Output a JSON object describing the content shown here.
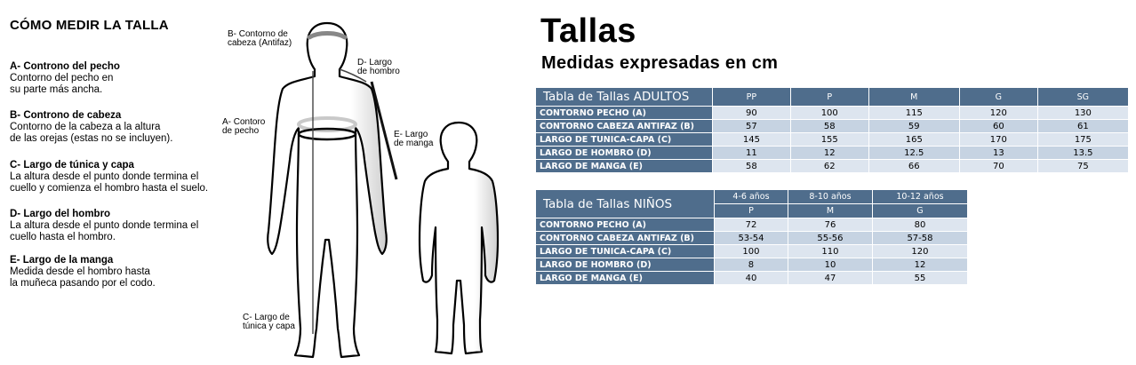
{
  "how_to": {
    "title": "CÓMO MEDIR LA TALLA",
    "items": [
      {
        "heading": "A- Controno del pecho",
        "lines": [
          "Contorno del pecho en",
          "su parte más ancha."
        ]
      },
      {
        "heading": "B- Controno de cabeza",
        "lines": [
          "Contorno de la cabeza a la altura",
          "de las orejas (estas no se incluyen)."
        ]
      },
      {
        "heading": "C- Largo de túnica y capa",
        "lines": [
          "La altura desde el punto donde termina el",
          "cuello y comienza el hombro hasta el suelo."
        ]
      },
      {
        "heading": "D- Largo del hombro",
        "lines": [
          "La altura desde el punto donde termina el",
          "cuello hasta el hombro."
        ]
      },
      {
        "heading": "E- Largo de la manga",
        "lines": [
          "Medida desde el hombro hasta",
          "la muñeca pasando por el codo."
        ]
      }
    ]
  },
  "figure_labels": {
    "b": "B- Contorno de\ncabeza (Antifaz)",
    "d": "D- Largo\nde hombro",
    "a": "A- Contoro\nde pecho",
    "e": "E- Largo\nde manga",
    "c": "C- Largo de\ntúnica y capa"
  },
  "heading": {
    "title": "Tallas",
    "subtitle": "Medidas expresadas en cm"
  },
  "adult_table": {
    "name": "Tabla de Tallas ADULTOS",
    "sizes": [
      "PP",
      "P",
      "M",
      "G",
      "SG"
    ],
    "rows": [
      {
        "label": "CONTORNO PECHO (A)",
        "values": [
          "90",
          "100",
          "115",
          "120",
          "130"
        ]
      },
      {
        "label": "CONTORNO CABEZA ANTIFAZ (B)",
        "values": [
          "57",
          "58",
          "59",
          "60",
          "61"
        ]
      },
      {
        "label": "LARGO DE TUNICA-CAPA (C)",
        "values": [
          "145",
          "155",
          "165",
          "170",
          "175"
        ]
      },
      {
        "label": "LARGO DE HOMBRO (D)",
        "values": [
          "11",
          "12",
          "12.5",
          "13",
          "13.5"
        ]
      },
      {
        "label": "LARGO DE MANGA (E)",
        "values": [
          "58",
          "62",
          "66",
          "70",
          "75"
        ]
      }
    ]
  },
  "kids_table": {
    "name": "Tabla de Tallas NIÑOS",
    "ages": [
      "4-6 años",
      "8-10 años",
      "10-12 años"
    ],
    "sizes": [
      "P",
      "M",
      "G"
    ],
    "rows": [
      {
        "label": "CONTORNO PECHO (A)",
        "values": [
          "72",
          "76",
          "80"
        ]
      },
      {
        "label": "CONTORNO CABEZA ANTIFAZ (B)",
        "values": [
          "53-54",
          "55-56",
          "57-58"
        ]
      },
      {
        "label": "LARGO DE TUNICA-CAPA (C)",
        "values": [
          "100",
          "110",
          "120"
        ]
      },
      {
        "label": "LARGO DE HOMBRO (D)",
        "values": [
          "8",
          "10",
          "12"
        ]
      },
      {
        "label": "LARGO DE MANGA (E)",
        "values": [
          "40",
          "47",
          "55"
        ]
      }
    ]
  }
}
